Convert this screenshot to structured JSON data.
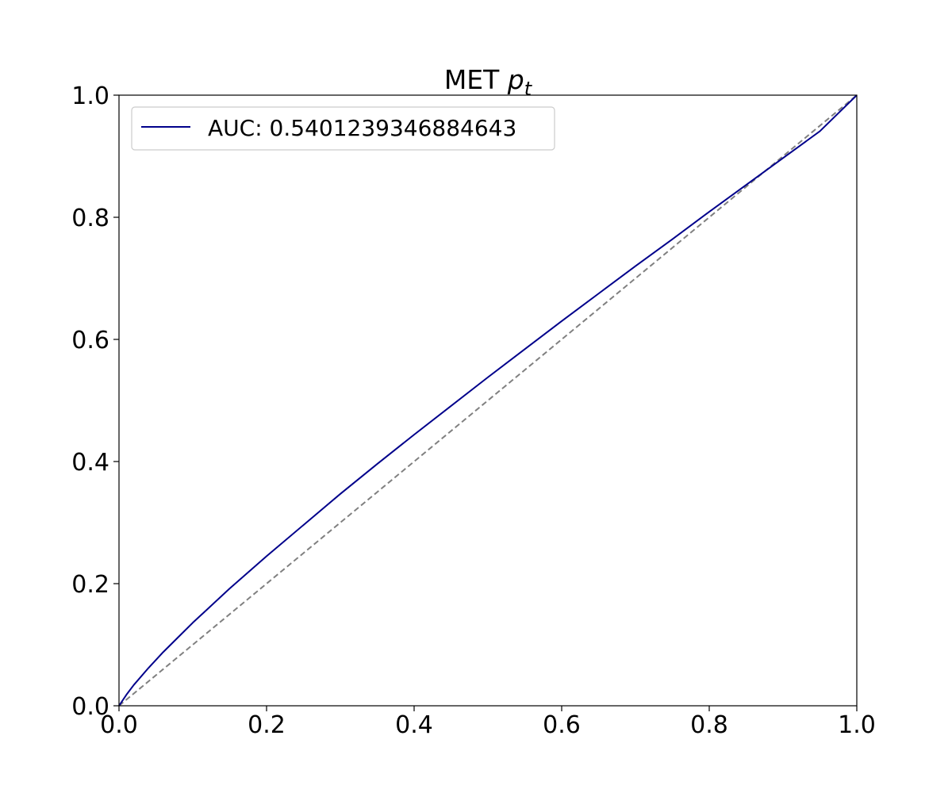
{
  "chart_data": {
    "type": "line",
    "title": "MET",
    "title_math": "p",
    "title_math_sub": "t",
    "xlabel": "",
    "ylabel": "",
    "xlim": [
      0.0,
      1.0
    ],
    "ylim": [
      0.0,
      1.0
    ],
    "grid": false,
    "legend_position": "top-left",
    "x_ticks": [
      0.0,
      0.2,
      0.4,
      0.6,
      0.8,
      1.0
    ],
    "y_ticks": [
      0.0,
      0.2,
      0.4,
      0.6,
      0.8,
      1.0
    ],
    "x_tick_labels": [
      "0.0",
      "0.2",
      "0.4",
      "0.6",
      "0.8",
      "1.0"
    ],
    "y_tick_labels": [
      "0.0",
      "0.2",
      "0.4",
      "0.6",
      "0.8",
      "1.0"
    ],
    "series": [
      {
        "name": "AUC: 0.5401239346884643",
        "color": "#00008b",
        "style": "solid",
        "x": [
          0.0,
          0.01,
          0.02,
          0.04,
          0.06,
          0.08,
          0.1,
          0.15,
          0.2,
          0.25,
          0.3,
          0.35,
          0.4,
          0.45,
          0.5,
          0.55,
          0.6,
          0.65,
          0.7,
          0.75,
          0.8,
          0.85,
          0.9,
          0.95,
          1.0
        ],
        "y": [
          0.0,
          0.018,
          0.034,
          0.062,
          0.088,
          0.112,
          0.136,
          0.192,
          0.245,
          0.296,
          0.347,
          0.396,
          0.444,
          0.491,
          0.538,
          0.584,
          0.63,
          0.675,
          0.72,
          0.764,
          0.809,
          0.853,
          0.897,
          0.941,
          1.0
        ]
      },
      {
        "color": "#808080",
        "style": "dashed",
        "x": [
          0.0,
          1.0
        ],
        "y": [
          0.0,
          1.0
        ]
      }
    ]
  }
}
